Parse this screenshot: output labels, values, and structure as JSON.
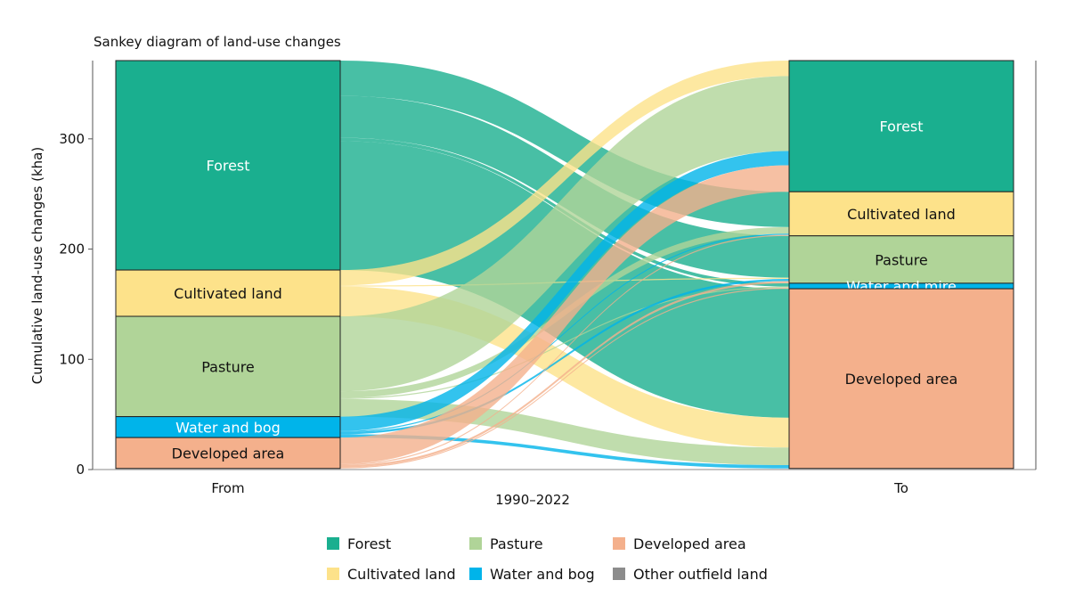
{
  "chart_data": {
    "type": "sankey",
    "title": "Sankey diagram of land-use changes",
    "ylabel": "Cumulative land-use changes (kha)",
    "xlabel": "1990–2022",
    "x_ticks": [
      "From",
      "To"
    ],
    "ylim": [
      0,
      371
    ],
    "y_ticks": [
      0,
      100,
      200,
      300
    ],
    "categories": [
      "Forest",
      "Cultivated land",
      "Pasture",
      "Water and bog",
      "Developed area"
    ],
    "left_labels": [
      "Forest",
      "Cultivated land",
      "Pasture",
      "Water and bog",
      "Developed area"
    ],
    "right_labels": [
      "Forest",
      "Cultivated land",
      "Pasture",
      "Water and mire",
      "Developed area"
    ],
    "colors": {
      "Forest": "#1aaf8f",
      "Cultivated land": "#fde28a",
      "Pasture": "#b0d498",
      "Water and bog": "#00b4ea",
      "Developed area": "#f4b08c",
      "Other outfield land": "#8c8c8c"
    },
    "flows": [
      [
        "Forest",
        "Cultivated land",
        32
      ],
      [
        "Forest",
        "Pasture",
        38
      ],
      [
        "Forest",
        "Water and bog",
        3
      ],
      [
        "Forest",
        "Developed area",
        117
      ],
      [
        "Cultivated land",
        "Forest",
        14
      ],
      [
        "Cultivated land",
        "Pasture",
        1
      ],
      [
        "Cultivated land",
        "Developed area",
        27
      ],
      [
        "Pasture",
        "Forest",
        68
      ],
      [
        "Pasture",
        "Cultivated land",
        6
      ],
      [
        "Pasture",
        "Water and bog",
        1
      ],
      [
        "Pasture",
        "Developed area",
        16
      ],
      [
        "Water and bog",
        "Forest",
        13
      ],
      [
        "Water and bog",
        "Cultivated land",
        1
      ],
      [
        "Water and bog",
        "Pasture",
        2
      ],
      [
        "Water and bog",
        "Developed area",
        3
      ],
      [
        "Developed area",
        "Forest",
        24
      ],
      [
        "Developed area",
        "Cultivated land",
        1
      ],
      [
        "Developed area",
        "Pasture",
        2
      ],
      [
        "Developed area",
        "Water and bog",
        1
      ]
    ],
    "legend": [
      "Forest",
      "Pasture",
      "Developed area",
      "Cultivated land",
      "Water and bog",
      "Other outfield land"
    ],
    "legend_position": "bottom"
  }
}
